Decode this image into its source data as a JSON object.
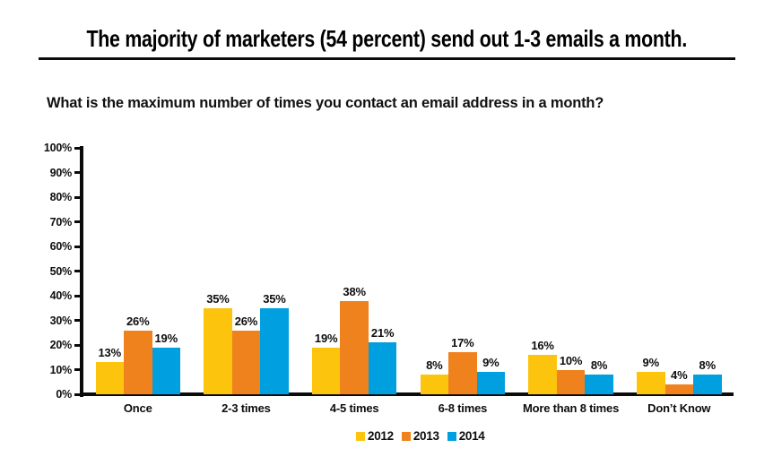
{
  "header": {
    "title": "The majority of marketers (54 percent) send out 1-3 emails a month."
  },
  "question": "What is the maximum number of times you contact an email address in a month?",
  "colors": {
    "series_2012": "#FDC40D",
    "series_2013": "#F0821E",
    "series_2014": "#009FDF",
    "axis": "#0b0b0b",
    "text": "#0d0d0d"
  },
  "chart_data": {
    "type": "bar",
    "title": "",
    "xlabel": "",
    "ylabel": "",
    "categories": [
      "Once",
      "2-3 times",
      "4-5 times",
      "6-8 times",
      "More than 8 times",
      "Don’t Know"
    ],
    "series": [
      {
        "name": "2012",
        "color": "#FDC40D",
        "values": [
          13,
          35,
          19,
          8,
          16,
          9
        ]
      },
      {
        "name": "2013",
        "color": "#F0821E",
        "values": [
          26,
          26,
          38,
          17,
          10,
          4
        ]
      },
      {
        "name": "2014",
        "color": "#009FDF",
        "values": [
          19,
          35,
          21,
          9,
          8,
          8
        ]
      }
    ],
    "value_label_suffix": "%",
    "ylim": [
      0,
      100
    ],
    "ytick_labels": [
      "100%",
      "90%",
      "80%",
      "70%",
      "60%",
      "50%",
      "40%",
      "30%",
      "20%",
      "10%",
      "0%"
    ],
    "grid": false,
    "legend_position": "bottom"
  }
}
